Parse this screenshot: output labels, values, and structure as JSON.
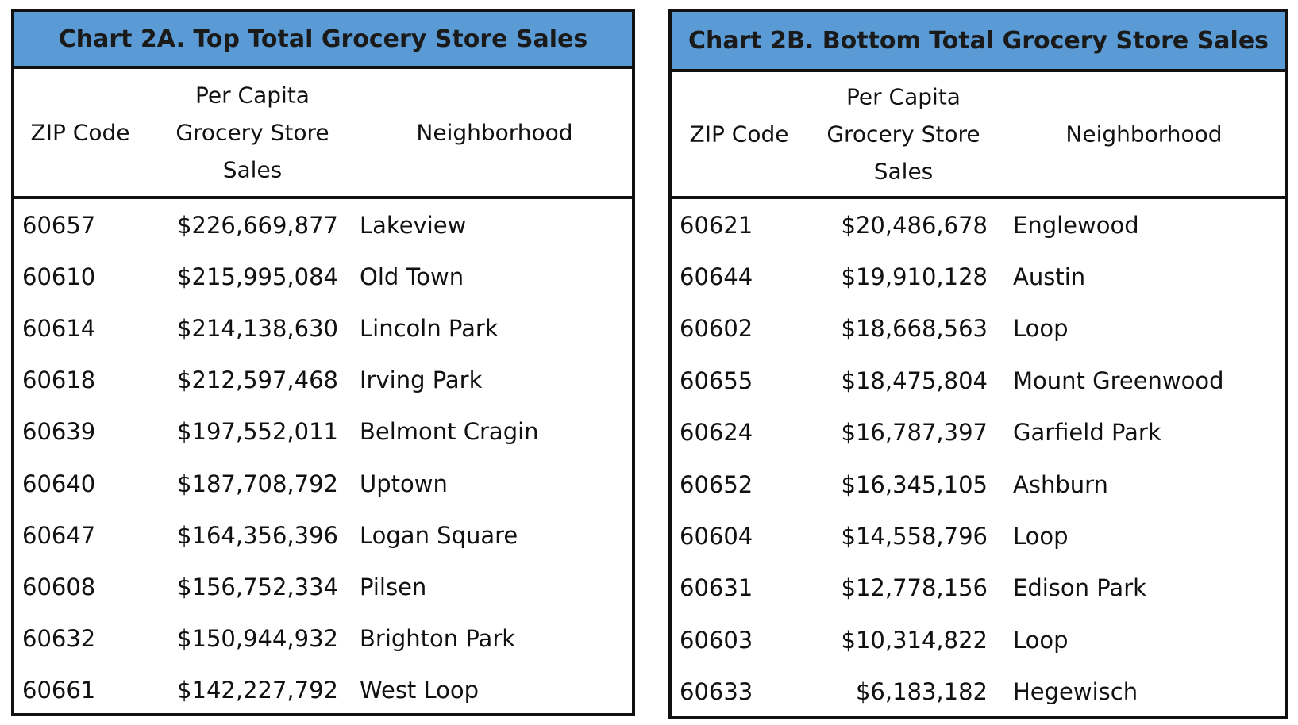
{
  "chart_data": [
    {
      "type": "table",
      "title": "Chart 2A. Top Total Grocery Store Sales",
      "columns": [
        "ZIP Code",
        "Per Capita Grocery Store Sales",
        "Neighborhood"
      ],
      "header_lines": {
        "zip": [
          "ZIP Code"
        ],
        "sales": [
          "Per Capita",
          "Grocery Store",
          "Sales"
        ],
        "hood": [
          "Neighborhood"
        ]
      },
      "rows": [
        {
          "zip": "60657",
          "sales": "$226,669,877",
          "hood": "Lakeview"
        },
        {
          "zip": "60610",
          "sales": "$215,995,084",
          "hood": "Old Town"
        },
        {
          "zip": "60614",
          "sales": "$214,138,630",
          "hood": "Lincoln Park"
        },
        {
          "zip": "60618",
          "sales": "$212,597,468",
          "hood": "Irving Park"
        },
        {
          "zip": "60639",
          "sales": "$197,552,011",
          "hood": "Belmont Cragin"
        },
        {
          "zip": "60640",
          "sales": "$187,708,792",
          "hood": "Uptown"
        },
        {
          "zip": "60647",
          "sales": "$164,356,396",
          "hood": "Logan Square"
        },
        {
          "zip": "60608",
          "sales": "$156,752,334",
          "hood": "Pilsen"
        },
        {
          "zip": "60632",
          "sales": "$150,944,932",
          "hood": "Brighton Park"
        },
        {
          "zip": "60661",
          "sales": "$142,227,792",
          "hood": "West Loop"
        }
      ]
    },
    {
      "type": "table",
      "title": "Chart 2B. Bottom Total Grocery Store Sales",
      "columns": [
        "ZIP Code",
        "Per Capita Grocery Store Sales",
        "Neighborhood"
      ],
      "header_lines": {
        "zip": [
          "ZIP Code"
        ],
        "sales": [
          "Per Capita",
          "Grocery Store",
          "Sales"
        ],
        "hood": [
          "Neighborhood"
        ]
      },
      "rows": [
        {
          "zip": "60621",
          "sales": "$20,486,678",
          "hood": "Englewood"
        },
        {
          "zip": "60644",
          "sales": "$19,910,128",
          "hood": "Austin"
        },
        {
          "zip": "60602",
          "sales": "$18,668,563",
          "hood": "Loop"
        },
        {
          "zip": "60655",
          "sales": "$18,475,804",
          "hood": "Mount Greenwood"
        },
        {
          "zip": "60624",
          "sales": "$16,787,397",
          "hood": "Garfield Park"
        },
        {
          "zip": "60652",
          "sales": "$16,345,105",
          "hood": "Ashburn"
        },
        {
          "zip": "60604",
          "sales": "$14,558,796",
          "hood": "Loop"
        },
        {
          "zip": "60631",
          "sales": "$12,778,156",
          "hood": "Edison Park"
        },
        {
          "zip": "60603",
          "sales": "$10,314,822",
          "hood": "Loop"
        },
        {
          "zip": "60633",
          "sales": "$6,183,182",
          "hood": "Hegewisch"
        }
      ]
    }
  ],
  "colors": {
    "title_bar": "#5b9bd5",
    "border": "#111111",
    "text": "#111111"
  }
}
